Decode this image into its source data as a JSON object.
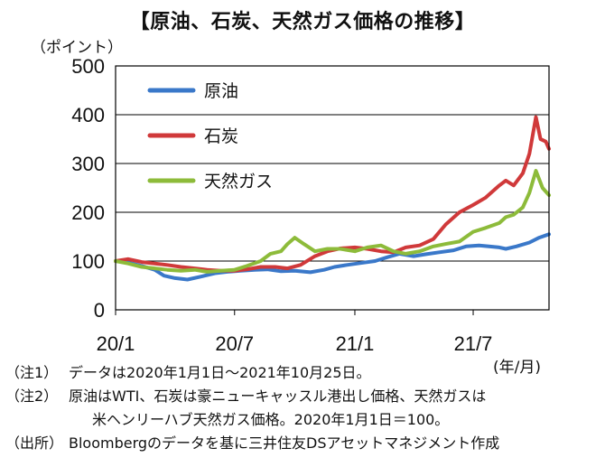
{
  "chart_data": {
    "type": "line",
    "title": "【原油、石炭、天然ガス価格の推移】",
    "ylabel": "（ポイント）",
    "xlabel": "(年/月)",
    "ylim": [
      0,
      500
    ],
    "yticks": [
      "0",
      "100",
      "200",
      "300",
      "400",
      "500"
    ],
    "xlim": [
      "2020-01-01",
      "2021-10-25"
    ],
    "xticks": [
      {
        "x": "2020-01-01",
        "label": "20/1"
      },
      {
        "x": "2020-07-01",
        "label": "20/7"
      },
      {
        "x": "2021-01-01",
        "label": "21/1"
      },
      {
        "x": "2021-07-01",
        "label": "21/7"
      }
    ],
    "legend_position": "top-left",
    "grid": true,
    "series": [
      {
        "name": "原油",
        "color": "#3a78c9",
        "points": [
          [
            "2020-01-01",
            100
          ],
          [
            "2020-01-20",
            97
          ],
          [
            "2020-02-10",
            90
          ],
          [
            "2020-03-01",
            82
          ],
          [
            "2020-03-15",
            70
          ],
          [
            "2020-04-01",
            65
          ],
          [
            "2020-04-20",
            62
          ],
          [
            "2020-05-10",
            68
          ],
          [
            "2020-06-01",
            75
          ],
          [
            "2020-06-20",
            78
          ],
          [
            "2020-07-10",
            80
          ],
          [
            "2020-08-01",
            82
          ],
          [
            "2020-08-20",
            83
          ],
          [
            "2020-09-10",
            79
          ],
          [
            "2020-10-01",
            80
          ],
          [
            "2020-10-25",
            77
          ],
          [
            "2020-11-15",
            82
          ],
          [
            "2020-12-01",
            88
          ],
          [
            "2020-12-20",
            92
          ],
          [
            "2021-01-10",
            96
          ],
          [
            "2021-02-01",
            100
          ],
          [
            "2021-02-20",
            108
          ],
          [
            "2021-03-10",
            115
          ],
          [
            "2021-04-01",
            110
          ],
          [
            "2021-04-20",
            114
          ],
          [
            "2021-05-10",
            118
          ],
          [
            "2021-06-01",
            122
          ],
          [
            "2021-06-20",
            130
          ],
          [
            "2021-07-10",
            132
          ],
          [
            "2021-07-25",
            130
          ],
          [
            "2021-08-10",
            128
          ],
          [
            "2021-08-20",
            125
          ],
          [
            "2021-09-05",
            130
          ],
          [
            "2021-09-25",
            138
          ],
          [
            "2021-10-10",
            148
          ],
          [
            "2021-10-25",
            155
          ]
        ]
      },
      {
        "name": "石炭",
        "color": "#d0393a",
        "points": [
          [
            "2020-01-01",
            100
          ],
          [
            "2020-01-20",
            104
          ],
          [
            "2020-02-10",
            98
          ],
          [
            "2020-03-01",
            95
          ],
          [
            "2020-03-20",
            92
          ],
          [
            "2020-04-10",
            88
          ],
          [
            "2020-05-01",
            85
          ],
          [
            "2020-05-20",
            82
          ],
          [
            "2020-06-10",
            80
          ],
          [
            "2020-07-01",
            80
          ],
          [
            "2020-07-20",
            83
          ],
          [
            "2020-08-10",
            88
          ],
          [
            "2020-09-01",
            88
          ],
          [
            "2020-09-20",
            85
          ],
          [
            "2020-10-10",
            92
          ],
          [
            "2020-11-01",
            110
          ],
          [
            "2020-11-20",
            120
          ],
          [
            "2020-12-10",
            126
          ],
          [
            "2021-01-01",
            128
          ],
          [
            "2021-01-20",
            125
          ],
          [
            "2021-02-10",
            120
          ],
          [
            "2021-03-01",
            118
          ],
          [
            "2021-03-20",
            128
          ],
          [
            "2021-04-10",
            132
          ],
          [
            "2021-05-01",
            145
          ],
          [
            "2021-05-20",
            175
          ],
          [
            "2021-06-10",
            200
          ],
          [
            "2021-07-01",
            215
          ],
          [
            "2021-07-20",
            230
          ],
          [
            "2021-08-10",
            255
          ],
          [
            "2021-08-20",
            265
          ],
          [
            "2021-09-01",
            255
          ],
          [
            "2021-09-15",
            280
          ],
          [
            "2021-09-25",
            320
          ],
          [
            "2021-10-05",
            395
          ],
          [
            "2021-10-12",
            350
          ],
          [
            "2021-10-20",
            345
          ],
          [
            "2021-10-25",
            330
          ]
        ]
      },
      {
        "name": "天然ガス",
        "color": "#8dbb3a",
        "points": [
          [
            "2020-01-01",
            100
          ],
          [
            "2020-01-20",
            95
          ],
          [
            "2020-02-10",
            88
          ],
          [
            "2020-03-01",
            85
          ],
          [
            "2020-03-20",
            82
          ],
          [
            "2020-04-10",
            80
          ],
          [
            "2020-05-01",
            82
          ],
          [
            "2020-05-20",
            78
          ],
          [
            "2020-06-10",
            80
          ],
          [
            "2020-07-01",
            82
          ],
          [
            "2020-07-20",
            90
          ],
          [
            "2020-08-10",
            100
          ],
          [
            "2020-08-25",
            115
          ],
          [
            "2020-09-10",
            120
          ],
          [
            "2020-09-20",
            135
          ],
          [
            "2020-10-01",
            148
          ],
          [
            "2020-10-15",
            135
          ],
          [
            "2020-11-01",
            120
          ],
          [
            "2020-11-20",
            125
          ],
          [
            "2020-12-10",
            125
          ],
          [
            "2021-01-01",
            120
          ],
          [
            "2021-01-20",
            128
          ],
          [
            "2021-02-10",
            132
          ],
          [
            "2021-03-01",
            120
          ],
          [
            "2021-03-20",
            115
          ],
          [
            "2021-04-10",
            120
          ],
          [
            "2021-05-01",
            130
          ],
          [
            "2021-05-20",
            135
          ],
          [
            "2021-06-10",
            140
          ],
          [
            "2021-07-01",
            160
          ],
          [
            "2021-07-20",
            168
          ],
          [
            "2021-08-10",
            178
          ],
          [
            "2021-08-20",
            190
          ],
          [
            "2021-09-01",
            195
          ],
          [
            "2021-09-15",
            210
          ],
          [
            "2021-09-25",
            240
          ],
          [
            "2021-10-05",
            285
          ],
          [
            "2021-10-15",
            250
          ],
          [
            "2021-10-25",
            235
          ]
        ]
      }
    ]
  },
  "notes": [
    {
      "label": "（注1）",
      "text": "データは2020年1月1日～2021年10月25日。"
    },
    {
      "label": "（注2）",
      "text": "原油はWTI、石炭は豪ニューキャッスル港出し価格、天然ガスは"
    },
    {
      "label": "",
      "text": "米ヘンリーハブ天然ガス価格。2020年1月1日＝100。"
    },
    {
      "label": "（出所）",
      "text": "Bloombergのデータを基に三井住友DSアセットマネジメント作成"
    }
  ]
}
